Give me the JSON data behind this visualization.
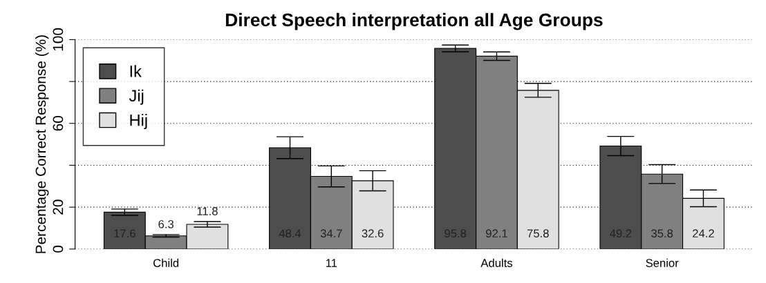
{
  "chart_data": {
    "type": "bar",
    "title": "Direct Speech interpretation all Age Groups",
    "ylabel": "Percentage Correct Response (%)",
    "categories": [
      "Child",
      "11",
      "Adults",
      "Senior"
    ],
    "series": [
      {
        "name": "Ik",
        "color": "#4d4d4d",
        "values": [
          17.6,
          48.4,
          95.8,
          49.2
        ],
        "errors": [
          1.5,
          5.2,
          1.6,
          4.6
        ]
      },
      {
        "name": "Jij",
        "color": "#808080",
        "values": [
          6.3,
          34.7,
          92.1,
          35.8
        ],
        "errors": [
          0.6,
          5,
          2,
          4.5
        ]
      },
      {
        "name": "Hij",
        "color": "#e0e0e0",
        "values": [
          11.8,
          32.6,
          75.8,
          24.2
        ],
        "errors": [
          1.3,
          4.8,
          3.3,
          4
        ]
      }
    ],
    "ylim": [
      0,
      100
    ],
    "yticks": [
      0,
      20,
      {
        "value": 40,
        "label": null
      },
      60,
      {
        "value": 80,
        "label": null
      },
      100
    ],
    "grid": "y",
    "legend": "top left",
    "data_labels": true
  }
}
